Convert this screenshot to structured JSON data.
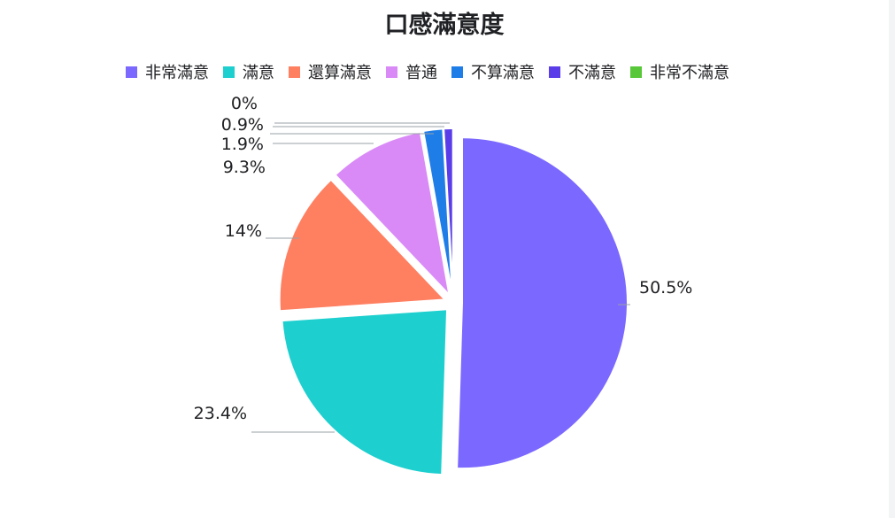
{
  "chart_data": {
    "type": "pie",
    "title": "口感滿意度",
    "legend_position": "top",
    "categories": [
      "非常滿意",
      "滿意",
      "還算滿意",
      "普通",
      "不算滿意",
      "不滿意",
      "非常不滿意"
    ],
    "values": [
      50.5,
      23.4,
      14,
      9.3,
      1.9,
      0.9,
      0
    ],
    "labels": [
      "50.5%",
      "23.4%",
      "14%",
      "9.3%",
      "1.9%",
      "0.9%",
      "0%"
    ],
    "colors": [
      "#7b68ff",
      "#1ecfcf",
      "#ff7f61",
      "#d98af7",
      "#1f7de8",
      "#5a3de8",
      "#58c83a"
    ]
  }
}
